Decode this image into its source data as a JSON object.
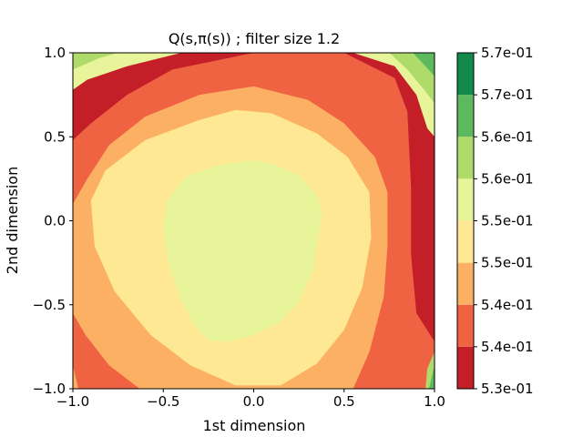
{
  "chart_data": {
    "type": "heatmap",
    "subtype": "filled-contour",
    "title": "Q(s,π(s)) ; filter size 1.2",
    "xlabel": "1st dimension",
    "ylabel": "2nd dimension",
    "xlim": [
      -1.0,
      1.0
    ],
    "ylim": [
      -1.0,
      1.0
    ],
    "x_ticks": [
      "−1.0",
      "−0.5",
      "0.0",
      "0.5",
      "1.0"
    ],
    "y_ticks": [
      "−1.0",
      "−0.5",
      "0.0",
      "0.5",
      "1.0"
    ],
    "colormap": "RdYlGn",
    "colorbar_ticks": [
      "5.3e-01",
      "5.4e-01",
      "5.4e-01",
      "5.5e-01",
      "5.5e-01",
      "5.6e-01",
      "5.6e-01",
      "5.7e-01",
      "5.7e-01"
    ],
    "level_colors": [
      "#c41f29",
      "#ef6343",
      "#fbb063",
      "#fee893",
      "#e7f499",
      "#afdb6b",
      "#5db95e",
      "#138a4a"
    ],
    "contour_regions": [
      {
        "level": 1,
        "polygon": [
          [
            -1.0,
            0.48
          ],
          [
            -0.9,
            0.58
          ],
          [
            -0.7,
            0.75
          ],
          [
            -0.45,
            0.9
          ],
          [
            0.0,
            1.0
          ],
          [
            0.5,
            1.0
          ],
          [
            0.78,
            0.85
          ],
          [
            0.85,
            0.65
          ],
          [
            0.87,
            0.2
          ],
          [
            0.87,
            -0.2
          ],
          [
            0.9,
            -0.55
          ],
          [
            1.0,
            -0.72
          ],
          [
            1.0,
            -1.0
          ],
          [
            -1.0,
            -1.0
          ]
        ]
      },
      {
        "level": 2,
        "polygon": [
          [
            -1.0,
            0.1
          ],
          [
            -0.92,
            0.25
          ],
          [
            -0.8,
            0.45
          ],
          [
            -0.6,
            0.62
          ],
          [
            -0.3,
            0.75
          ],
          [
            0.0,
            0.8
          ],
          [
            0.3,
            0.72
          ],
          [
            0.5,
            0.58
          ],
          [
            0.67,
            0.38
          ],
          [
            0.74,
            0.17
          ],
          [
            0.74,
            -0.15
          ],
          [
            0.72,
            -0.45
          ],
          [
            0.64,
            -0.78
          ],
          [
            0.55,
            -1.0
          ],
          [
            -0.63,
            -1.0
          ],
          [
            -0.8,
            -0.86
          ],
          [
            -0.93,
            -0.68
          ],
          [
            -1.0,
            -0.55
          ]
        ]
      },
      {
        "level": 3,
        "polygon": [
          [
            -0.9,
            0.12
          ],
          [
            -0.82,
            0.3
          ],
          [
            -0.6,
            0.48
          ],
          [
            -0.3,
            0.6
          ],
          [
            -0.1,
            0.66
          ],
          [
            0.1,
            0.64
          ],
          [
            0.35,
            0.52
          ],
          [
            0.52,
            0.38
          ],
          [
            0.64,
            0.17
          ],
          [
            0.65,
            -0.1
          ],
          [
            0.6,
            -0.4
          ],
          [
            0.5,
            -0.65
          ],
          [
            0.35,
            -0.85
          ],
          [
            0.15,
            -0.98
          ],
          [
            -0.1,
            -0.98
          ],
          [
            -0.35,
            -0.86
          ],
          [
            -0.57,
            -0.68
          ],
          [
            -0.77,
            -0.42
          ],
          [
            -0.88,
            -0.15
          ]
        ]
      },
      {
        "level": 4,
        "polygon": [
          [
            -0.5,
            -0.05
          ],
          [
            -0.48,
            0.12
          ],
          [
            -0.38,
            0.26
          ],
          [
            -0.2,
            0.33
          ],
          [
            0.0,
            0.36
          ],
          [
            0.1,
            0.34
          ],
          [
            0.25,
            0.27
          ],
          [
            0.35,
            0.15
          ],
          [
            0.38,
            0.03
          ],
          [
            0.35,
            -0.12
          ],
          [
            0.33,
            -0.3
          ],
          [
            0.25,
            -0.48
          ],
          [
            0.15,
            -0.6
          ],
          [
            0.0,
            -0.68
          ],
          [
            -0.15,
            -0.72
          ],
          [
            -0.25,
            -0.71
          ],
          [
            -0.33,
            -0.62
          ],
          [
            -0.41,
            -0.45
          ],
          [
            -0.47,
            -0.25
          ]
        ]
      },
      {
        "level": 3,
        "polygon": [
          [
            0.97,
            -1.0
          ],
          [
            1.0,
            -1.0
          ],
          [
            1.0,
            -0.88
          ]
        ]
      },
      {
        "level": 5,
        "polygon": [
          [
            0.95,
            -1.0
          ],
          [
            1.0,
            -1.0
          ],
          [
            1.0,
            -0.78
          ],
          [
            0.96,
            -0.88
          ]
        ]
      },
      {
        "level": 6,
        "polygon": [
          [
            0.97,
            -1.0
          ],
          [
            1.0,
            -1.0
          ],
          [
            1.0,
            -0.86
          ]
        ]
      },
      {
        "level": 2,
        "polygon": [
          [
            -1.0,
            -0.86
          ],
          [
            -0.97,
            -1.0
          ],
          [
            -1.0,
            -1.0
          ]
        ]
      },
      {
        "level": 4,
        "polygon": [
          [
            -1.0,
            0.78
          ],
          [
            -0.92,
            0.84
          ],
          [
            -0.7,
            0.92
          ],
          [
            -0.4,
            1.0
          ],
          [
            -1.0,
            1.0
          ]
        ]
      },
      {
        "level": 5,
        "polygon": [
          [
            -1.0,
            0.9
          ],
          [
            -0.85,
            0.97
          ],
          [
            -0.75,
            1.0
          ],
          [
            -1.0,
            1.0
          ]
        ]
      },
      {
        "level": 4,
        "polygon": [
          [
            0.55,
            1.0
          ],
          [
            0.78,
            0.92
          ],
          [
            0.9,
            0.75
          ],
          [
            0.96,
            0.55
          ],
          [
            1.0,
            0.5
          ],
          [
            1.0,
            1.0
          ]
        ]
      },
      {
        "level": 5,
        "polygon": [
          [
            0.75,
            1.0
          ],
          [
            0.85,
            0.9
          ],
          [
            0.95,
            0.77
          ],
          [
            1.0,
            0.7
          ],
          [
            1.0,
            1.0
          ]
        ]
      },
      {
        "level": 6,
        "polygon": [
          [
            0.88,
            1.0
          ],
          [
            0.95,
            0.92
          ],
          [
            1.0,
            0.86
          ],
          [
            1.0,
            1.0
          ]
        ]
      }
    ]
  }
}
